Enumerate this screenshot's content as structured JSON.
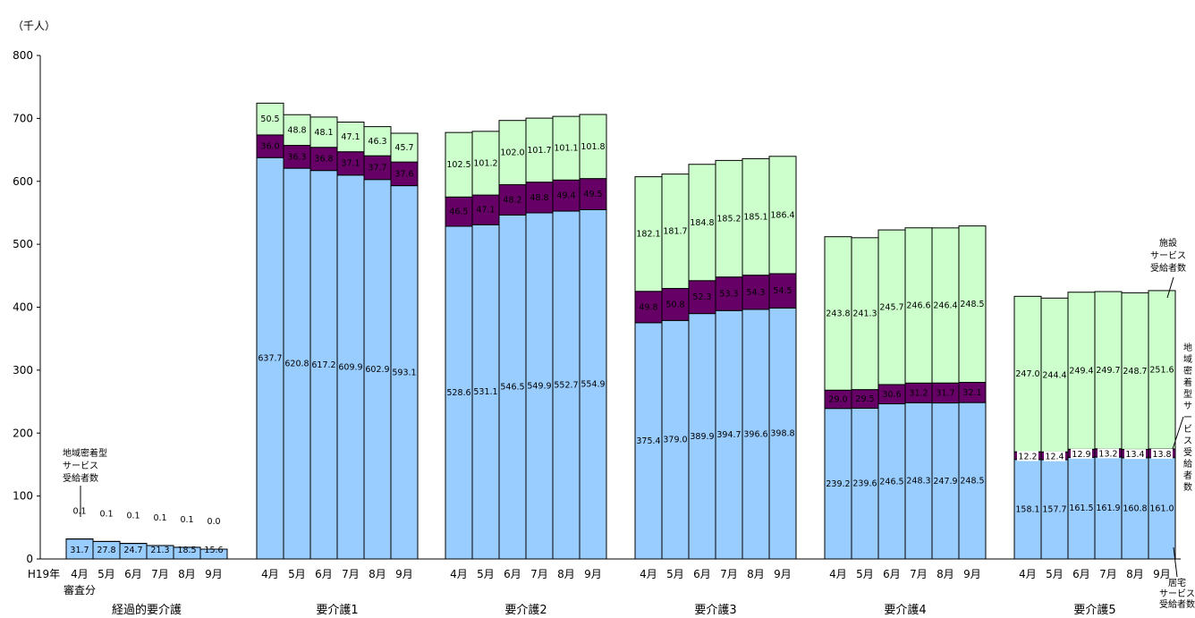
{
  "chart_data": {
    "type": "bar",
    "stacked": true,
    "unit_label": "（千人）",
    "ylim": [
      0,
      800
    ],
    "yticks": [
      0,
      100,
      200,
      300,
      400,
      500,
      600,
      700,
      800
    ],
    "year_label": "H19年",
    "colors": {
      "home": "#99ccff",
      "community": "#660066",
      "facility": "#ccffcc",
      "edge": "#000000"
    },
    "groups": [
      {
        "label": "経過的要介護",
        "sub_label": "審査分",
        "months": [
          "4月",
          "5月",
          "6月",
          "7月",
          "8月",
          "9月"
        ],
        "home": [
          31.7,
          27.8,
          24.7,
          21.3,
          18.5,
          15.6
        ],
        "community": [
          0.1,
          0.1,
          0.1,
          0.1,
          0.1,
          0.0
        ],
        "facility": [
          0,
          0,
          0,
          0,
          0,
          0
        ],
        "home_labels": [
          "31.7",
          "27.8",
          "24.7",
          "21.3",
          "18.5",
          "15.6"
        ],
        "community_labels": [
          "0.1",
          "0.1",
          "0.1",
          "0.1",
          "0.1",
          "0.0"
        ],
        "facility_labels": []
      },
      {
        "label": "要介護1",
        "months": [
          "4月",
          "5月",
          "6月",
          "7月",
          "8月",
          "9月"
        ],
        "home": [
          637.7,
          620.8,
          617.2,
          609.9,
          602.9,
          593.1
        ],
        "community": [
          36.0,
          36.3,
          36.8,
          37.1,
          37.7,
          37.6
        ],
        "facility": [
          50.5,
          48.8,
          48.1,
          47.1,
          46.3,
          45.7
        ],
        "home_labels": [
          "637.7",
          "620.8",
          "617.2",
          "609.9",
          "602.9",
          "593.1"
        ],
        "community_labels": [
          "36.0",
          "36.3",
          "36.8",
          "37.1",
          "37.7",
          "37.6"
        ],
        "facility_labels": [
          "50.5",
          "48.8",
          "48.1",
          "47.1",
          "46.3",
          "45.7"
        ]
      },
      {
        "label": "要介護2",
        "months": [
          "4月",
          "5月",
          "6月",
          "7月",
          "8月",
          "9月"
        ],
        "home": [
          528.6,
          531.1,
          546.5,
          549.9,
          552.7,
          554.9
        ],
        "community": [
          46.5,
          47.1,
          48.2,
          48.8,
          49.4,
          49.5
        ],
        "facility": [
          102.5,
          101.2,
          102.0,
          101.7,
          101.1,
          101.8
        ],
        "home_labels": [
          "528.6",
          "531.1",
          "546.5",
          "549.9",
          "552.7",
          "554.9"
        ],
        "community_labels": [
          "46.5",
          "47.1",
          "48.2",
          "48.8",
          "49.4",
          "49.5"
        ],
        "facility_labels": [
          "102.5",
          "101.2",
          "102.0",
          "101.7",
          "101.1",
          "101.8"
        ]
      },
      {
        "label": "要介護3",
        "months": [
          "4月",
          "5月",
          "6月",
          "7月",
          "8月",
          "9月"
        ],
        "home": [
          375.4,
          379.0,
          389.9,
          394.7,
          396.6,
          398.8
        ],
        "community": [
          49.8,
          50.8,
          52.3,
          53.3,
          54.3,
          54.5
        ],
        "facility": [
          182.1,
          181.7,
          184.8,
          185.2,
          185.1,
          186.4
        ],
        "home_labels": [
          "375.4",
          "379.0",
          "389.9",
          "394.7",
          "396.6",
          "398.8"
        ],
        "community_labels": [
          "49.8",
          "50.8",
          "52.3",
          "53.3",
          "54.3",
          "54.5"
        ],
        "facility_labels": [
          "182.1",
          "181.7",
          "184.8",
          "185.2",
          "185.1",
          "186.4"
        ]
      },
      {
        "label": "要介護4",
        "months": [
          "4月",
          "5月",
          "6月",
          "7月",
          "8月",
          "9月"
        ],
        "home": [
          239.2,
          239.6,
          246.5,
          248.3,
          247.9,
          248.5
        ],
        "community": [
          29.0,
          29.5,
          30.6,
          31.2,
          31.7,
          32.1
        ],
        "facility": [
          243.8,
          241.3,
          245.7,
          246.6,
          246.4,
          248.5
        ],
        "home_labels": [
          "239.2",
          "239.6",
          "246.5",
          "248.3",
          "247.9",
          "248.5"
        ],
        "community_labels": [
          "29.0",
          "29.5",
          "30.6",
          "31.2",
          "31.7",
          "32.1"
        ],
        "facility_labels": [
          "243.8",
          "241.3",
          "245.7",
          "246.6",
          "246.4",
          "248.5"
        ]
      },
      {
        "label": "要介護5",
        "months": [
          "4月",
          "5月",
          "6月",
          "7月",
          "8月",
          "9月"
        ],
        "home": [
          158.1,
          157.7,
          161.5,
          161.9,
          160.8,
          161.0
        ],
        "community": [
          12.2,
          12.4,
          12.9,
          13.2,
          13.4,
          13.8
        ],
        "facility": [
          247.0,
          244.4,
          249.4,
          249.7,
          248.7,
          251.6
        ],
        "home_labels": [
          "158.1",
          "157.7",
          "161.5",
          "161.9",
          "160.8",
          "161.0"
        ],
        "community_labels": [
          "12.2",
          "12.4",
          "12.9",
          "13.2",
          "13.4",
          "13.8"
        ],
        "facility_labels": [
          "247.0",
          "244.4",
          "249.4",
          "249.7",
          "248.7",
          "251.6"
        ]
      }
    ],
    "annotations": {
      "community_note": [
        "地域密着型",
        "サービス",
        "受給者数"
      ],
      "facility_note": [
        "施設",
        "サービス",
        "受給者数"
      ],
      "community_vertical": "地域密着型サービス受給者数",
      "home_note": [
        "居宅",
        "サービス",
        "受給者数"
      ]
    }
  }
}
